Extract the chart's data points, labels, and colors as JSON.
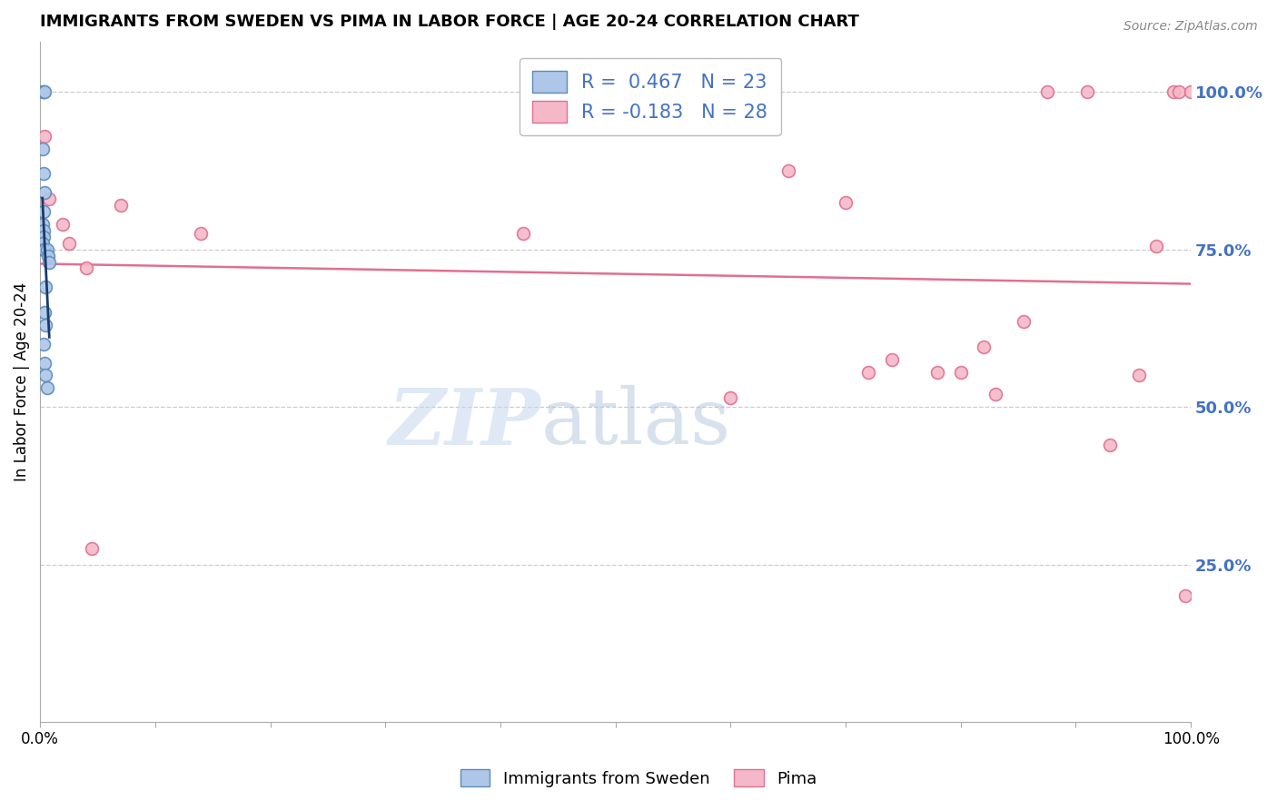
{
  "title": "IMMIGRANTS FROM SWEDEN VS PIMA IN LABOR FORCE | AGE 20-24 CORRELATION CHART",
  "source": "Source: ZipAtlas.com",
  "ylabel": "In Labor Force | Age 20-24",
  "xlim": [
    0,
    1
  ],
  "ylim": [
    0,
    1.08
  ],
  "yticks_right": [
    0.25,
    0.5,
    0.75,
    1.0
  ],
  "ytick_labels_right": [
    "25.0%",
    "50.0%",
    "75.0%",
    "100.0%"
  ],
  "blue_color": "#AEC6E8",
  "blue_edge_color": "#5B8DB8",
  "pink_color": "#F4B8C8",
  "pink_edge_color": "#E07090",
  "blue_line_color": "#1A3A6B",
  "pink_line_color": "#E07090",
  "R_blue": 0.467,
  "N_blue": 23,
  "R_pink": -0.183,
  "N_pink": 28,
  "legend_label_blue": "Immigrants from Sweden",
  "legend_label_pink": "Pima",
  "legend_text_color": "#4472C4",
  "blue_x": [
    0.002,
    0.003,
    0.004,
    0.002,
    0.003,
    0.004,
    0.003,
    0.002,
    0.003,
    0.003,
    0.002,
    0.003,
    0.004,
    0.006,
    0.007,
    0.008,
    0.005,
    0.004,
    0.005,
    0.003,
    0.004,
    0.005,
    0.006
  ],
  "blue_y": [
    1.0,
    1.0,
    1.0,
    0.91,
    0.87,
    0.84,
    0.81,
    0.79,
    0.78,
    0.77,
    0.76,
    0.75,
    0.75,
    0.75,
    0.74,
    0.73,
    0.69,
    0.65,
    0.63,
    0.6,
    0.57,
    0.55,
    0.53
  ],
  "pink_x": [
    0.004,
    0.008,
    0.02,
    0.025,
    0.04,
    0.045,
    0.07,
    0.14,
    0.42,
    0.6,
    0.65,
    0.7,
    0.72,
    0.74,
    0.78,
    0.8,
    0.82,
    0.83,
    0.855,
    0.875,
    0.91,
    0.93,
    0.955,
    0.97,
    0.985,
    0.99,
    0.995,
    1.0
  ],
  "pink_y": [
    0.93,
    0.83,
    0.79,
    0.76,
    0.72,
    0.275,
    0.82,
    0.775,
    0.775,
    0.515,
    0.875,
    0.825,
    0.555,
    0.575,
    0.555,
    0.555,
    0.595,
    0.52,
    0.635,
    1.0,
    1.0,
    0.44,
    0.55,
    0.755,
    1.0,
    1.0,
    0.2,
    1.0
  ],
  "watermark_zip": "ZIP",
  "watermark_atlas": "atlas",
  "background_color": "#ffffff",
  "grid_color": "#cccccc",
  "right_axis_color": "#4472C4",
  "marker_size": 100
}
